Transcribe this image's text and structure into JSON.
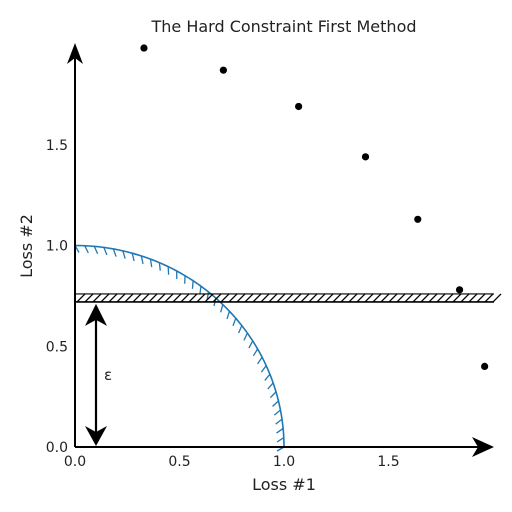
{
  "chart_data": {
    "type": "scatter",
    "title": "The Hard Constraint First Method",
    "xlabel": "Loss #1",
    "ylabel": "Loss #2",
    "xlim": [
      0.0,
      2.0
    ],
    "ylim": [
      0.0,
      2.0
    ],
    "xticks": [
      "0.0",
      "0.5",
      "1.0",
      "1.5"
    ],
    "yticks": [
      "0.0",
      "0.5",
      "1.0",
      "1.5"
    ],
    "grid": false,
    "points": [
      {
        "x": 0.33,
        "y": 1.98
      },
      {
        "x": 0.71,
        "y": 1.87
      },
      {
        "x": 1.07,
        "y": 1.69
      },
      {
        "x": 1.39,
        "y": 1.44
      },
      {
        "x": 1.64,
        "y": 1.13
      },
      {
        "x": 1.84,
        "y": 0.78
      },
      {
        "x": 1.96,
        "y": 0.4
      }
    ],
    "feasible_region_radius": 1.0,
    "constraint_epsilon": 0.72,
    "epsilon_label": "ε",
    "colors": {
      "points": "#000000",
      "region": "#1f77b4",
      "constraint": "#000000",
      "axes": "#000000"
    }
  }
}
